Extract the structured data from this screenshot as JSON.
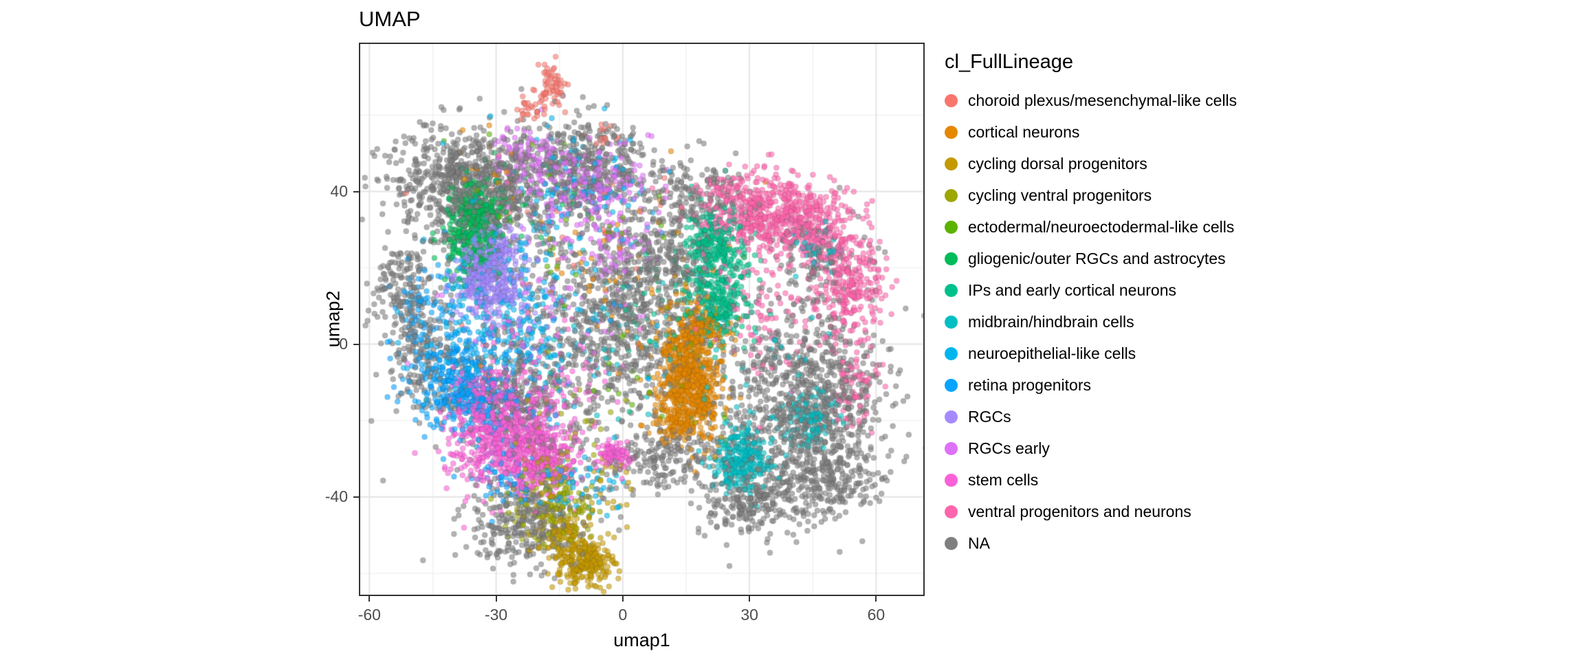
{
  "figure": {
    "title": "UMAP",
    "x_axis": {
      "label": "umap1",
      "ticks": [
        -60,
        -30,
        0,
        30,
        60
      ]
    },
    "y_axis": {
      "label": "umap2",
      "ticks": [
        -40,
        0,
        40
      ]
    }
  },
  "legend": {
    "title": "cl_FullLineage",
    "entries": [
      {
        "label": "choroid plexus/mesenchymal-like cells",
        "color": "#F8766D"
      },
      {
        "label": "cortical neurons",
        "color": "#E58700"
      },
      {
        "label": "cycling dorsal progenitors",
        "color": "#C49A00"
      },
      {
        "label": "cycling ventral progenitors",
        "color": "#9DA700"
      },
      {
        "label": "ectodermal/neuroectodermal-like cells",
        "color": "#5BB300"
      },
      {
        "label": "gliogenic/outer RGCs and astrocytes",
        "color": "#00BC59"
      },
      {
        "label": "IPs and early cortical neurons",
        "color": "#00C08B"
      },
      {
        "label": "midbrain/hindbrain cells",
        "color": "#00BFC4"
      },
      {
        "label": "neuroepithelial-like cells",
        "color": "#00B5EE"
      },
      {
        "label": "retina progenitors",
        "color": "#06A4FF"
      },
      {
        "label": "RGCs",
        "color": "#A58AFF"
      },
      {
        "label": "RGCs early",
        "color": "#DF70F8"
      },
      {
        "label": "stem cells",
        "color": "#FB61D7"
      },
      {
        "label": "ventral progenitors and neurons",
        "color": "#FF65AC"
      },
      {
        "label": "NA",
        "color": "#7F7F7F"
      }
    ]
  },
  "chart_data": {
    "type": "scatter",
    "title": "UMAP",
    "xlabel": "umap1",
    "ylabel": "umap2",
    "xlim": [
      -62.5,
      71.5
    ],
    "ylim": [
      -66,
      79
    ],
    "x_ticks": [
      -60,
      -30,
      0,
      30,
      60
    ],
    "y_ticks": [
      -40,
      0,
      40
    ],
    "x_minor_ticks": [
      -45,
      -15,
      15,
      45
    ],
    "y_minor_ticks": [
      -60,
      -20,
      20,
      60
    ],
    "grid": true,
    "legend_position": "right",
    "point_radius_px": 4,
    "point_alpha": 0.6,
    "cluster_format": [
      "center_x",
      "center_y",
      "sd_x",
      "sd_y",
      "n_points"
    ],
    "series": [
      {
        "name": "choroid plexus/mesenchymal-like cells",
        "color": "#F8766D",
        "clusters": [
          [
            -17,
            68,
            2,
            3,
            60
          ],
          [
            -22,
            62,
            1.5,
            2,
            25
          ],
          [
            -4,
            55,
            1.5,
            1.5,
            12
          ],
          [
            -15,
            30,
            18,
            15,
            20
          ]
        ]
      },
      {
        "name": "cortical neurons",
        "color": "#E58700",
        "clusters": [
          [
            16,
            -9,
            3.8,
            7.5,
            650
          ],
          [
            18,
            4,
            3,
            3.5,
            130
          ],
          [
            13,
            -20,
            3,
            3,
            80
          ],
          [
            2,
            18,
            14,
            14,
            70
          ],
          [
            -30,
            45,
            6,
            5,
            25
          ]
        ]
      },
      {
        "name": "cycling dorsal progenitors",
        "color": "#C49A00",
        "clusters": [
          [
            -9,
            -57,
            3.5,
            3,
            250
          ],
          [
            -14,
            -50,
            3,
            3,
            90
          ],
          [
            -11,
            -38,
            7,
            7,
            40
          ]
        ]
      },
      {
        "name": "cycling ventral progenitors",
        "color": "#9DA700",
        "clusters": [
          [
            -16,
            -44,
            5,
            5,
            130
          ],
          [
            -18,
            -34,
            4,
            4,
            50
          ],
          [
            -12,
            -20,
            8,
            10,
            30
          ]
        ]
      },
      {
        "name": "ectodermal/neuroectodermal-like cells",
        "color": "#5BB300",
        "clusters": [
          [
            -20,
            33,
            14,
            12,
            35
          ],
          [
            3,
            -8,
            10,
            10,
            20
          ]
        ]
      },
      {
        "name": "gliogenic/outer RGCs and astrocytes",
        "color": "#00BC59",
        "clusters": [
          [
            -36,
            29,
            3,
            6,
            300
          ],
          [
            -33,
            36,
            3,
            3,
            80
          ],
          [
            -25,
            35,
            8,
            6,
            40
          ]
        ]
      },
      {
        "name": "IPs and early cortical neurons",
        "color": "#00C08B",
        "clusters": [
          [
            22,
            18,
            4,
            8,
            350
          ],
          [
            20,
            28,
            3,
            3,
            80
          ],
          [
            24,
            8,
            3,
            3,
            70
          ],
          [
            12,
            12,
            10,
            10,
            40
          ]
        ]
      },
      {
        "name": "midbrain/hindbrain cells",
        "color": "#00BFC4",
        "clusters": [
          [
            28,
            -30,
            3.5,
            4.5,
            260
          ],
          [
            44,
            -20,
            3,
            4,
            110
          ],
          [
            46,
            25,
            3,
            4,
            40
          ],
          [
            24,
            -8,
            12,
            10,
            60
          ],
          [
            -5,
            0,
            10,
            10,
            30
          ]
        ]
      },
      {
        "name": "neuroepithelial-like cells",
        "color": "#00B5EE",
        "clusters": [
          [
            -28,
            5,
            9,
            12,
            250
          ],
          [
            -12,
            42,
            8,
            6,
            90
          ],
          [
            -8,
            -37,
            4,
            4,
            50
          ],
          [
            -20,
            20,
            15,
            15,
            80
          ]
        ]
      },
      {
        "name": "retina progenitors",
        "color": "#06A4FF",
        "clusters": [
          [
            -41,
            -9,
            5,
            6,
            220
          ],
          [
            -33,
            -15,
            5,
            5,
            130
          ],
          [
            -47,
            10,
            3.5,
            5,
            70
          ],
          [
            -30,
            -5,
            12,
            12,
            120
          ],
          [
            -28,
            -36,
            5,
            4,
            60
          ]
        ]
      },
      {
        "name": "RGCs",
        "color": "#A58AFF",
        "clusters": [
          [
            -32,
            18,
            4,
            5,
            350
          ],
          [
            -30,
            25,
            3,
            3,
            80
          ],
          [
            -27,
            10,
            6,
            5,
            50
          ]
        ]
      },
      {
        "name": "RGCs early",
        "color": "#DF70F8",
        "clusters": [
          [
            -9,
            40,
            8,
            6,
            230
          ],
          [
            -23,
            49,
            4,
            4,
            90
          ],
          [
            -2,
            27,
            4,
            4,
            60
          ],
          [
            -14,
            18,
            12,
            12,
            70
          ]
        ]
      },
      {
        "name": "stem cells",
        "color": "#FB61D7",
        "clusters": [
          [
            -27,
            -25,
            6.5,
            6.5,
            700
          ],
          [
            -18,
            -32,
            4,
            4,
            150
          ],
          [
            -2,
            -29,
            2.3,
            1.7,
            80
          ],
          [
            -32,
            -14,
            4,
            4,
            120
          ],
          [
            -18,
            -8,
            10,
            10,
            100
          ]
        ]
      },
      {
        "name": "ventral progenitors and neurons",
        "color": "#FF65AC",
        "clusters": [
          [
            37,
            34,
            8,
            5,
            550
          ],
          [
            54,
            14,
            4,
            7,
            250
          ],
          [
            55,
            -10,
            3,
            6,
            70
          ],
          [
            33,
            12,
            8,
            10,
            120
          ],
          [
            48,
            28,
            4,
            4,
            120
          ],
          [
            25,
            40,
            4,
            3,
            60
          ]
        ]
      },
      {
        "name": "NA",
        "color": "#7F7F7F",
        "clusters": [
          [
            -35,
            41,
            10,
            8,
            900
          ],
          [
            -8,
            47,
            8,
            6,
            350
          ],
          [
            -2,
            7,
            9,
            12,
            450
          ],
          [
            -52,
            15,
            4,
            6,
            150
          ],
          [
            -48,
            -3,
            4,
            8,
            150
          ],
          [
            44,
            -15,
            10,
            12,
            900
          ],
          [
            46,
            -36,
            7,
            5,
            250
          ],
          [
            30,
            -42,
            6,
            4,
            200
          ],
          [
            -24,
            -47,
            7,
            6,
            300
          ],
          [
            10,
            -30,
            8,
            4,
            200
          ],
          [
            10,
            23,
            5,
            10,
            250
          ],
          [
            48,
            22,
            5,
            6,
            120
          ],
          [
            -2,
            3,
            20,
            20,
            350
          ],
          [
            -25,
            -12,
            9,
            8,
            250
          ],
          [
            20,
            40,
            6,
            5,
            120
          ]
        ]
      }
    ]
  }
}
